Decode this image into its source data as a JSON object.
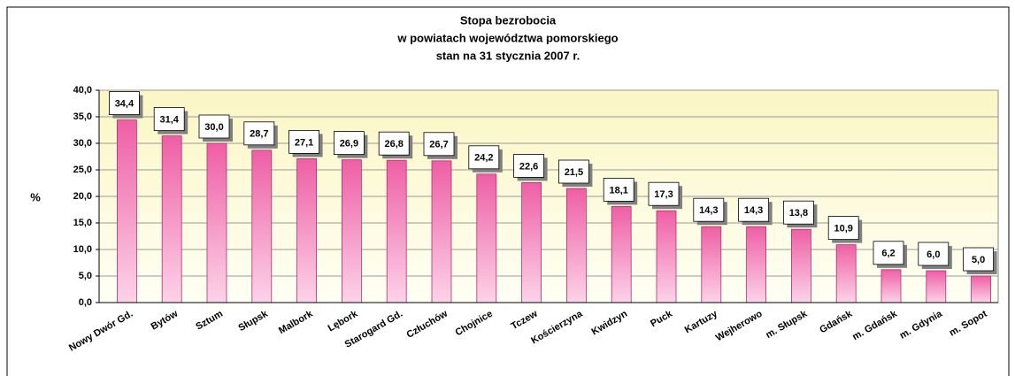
{
  "chart_data": {
    "type": "bar",
    "title": [
      "Stopa bezrobocia",
      "w powiatach województwa pomorskiego",
      "stan na 31 stycznia 2007 r."
    ],
    "y_label": "%",
    "categories": [
      "Nowy Dwór Gd.",
      "Bytów",
      "Sztum",
      "Słupsk",
      "Malbork",
      "Lębork",
      "Starogard Gd.",
      "Człuchów",
      "Chojnice",
      "Tczew",
      "Kościerzyna",
      "Kwidzyn",
      "Puck",
      "Kartuzy",
      "Wejherowo",
      "m. Słupsk",
      "Gdańsk",
      "m. Gdańsk",
      "m. Gdynia",
      "m. Sopot"
    ],
    "values": [
      34.4,
      31.4,
      30.0,
      28.7,
      27.1,
      26.9,
      26.8,
      26.7,
      24.2,
      22.6,
      21.5,
      18.1,
      17.3,
      14.3,
      14.3,
      13.8,
      10.9,
      6.2,
      6.0,
      5.0
    ],
    "value_labels": [
      "34,4",
      "31,4",
      "30,0",
      "28,7",
      "27,1",
      "26,9",
      "26,8",
      "26,7",
      "24,2",
      "22,6",
      "21,5",
      "18,1",
      "17,3",
      "14,3",
      "14,3",
      "13,8",
      "10,9",
      "6,2",
      "6,0",
      "5,0"
    ],
    "color": "#ee5fa5",
    "ylim": [
      0,
      40
    ],
    "yticks": [
      {
        "value": 0,
        "label": "0,0"
      },
      {
        "value": 5,
        "label": "5,0"
      },
      {
        "value": 10,
        "label": "10,0"
      },
      {
        "value": 15,
        "label": "15,0"
      },
      {
        "value": 20,
        "label": "20,0"
      },
      {
        "value": 25,
        "label": "25,0"
      },
      {
        "value": 30,
        "label": "30,0"
      },
      {
        "value": 35,
        "label": "35,0"
      },
      {
        "value": 40,
        "label": "40,0"
      }
    ],
    "grid": true
  }
}
